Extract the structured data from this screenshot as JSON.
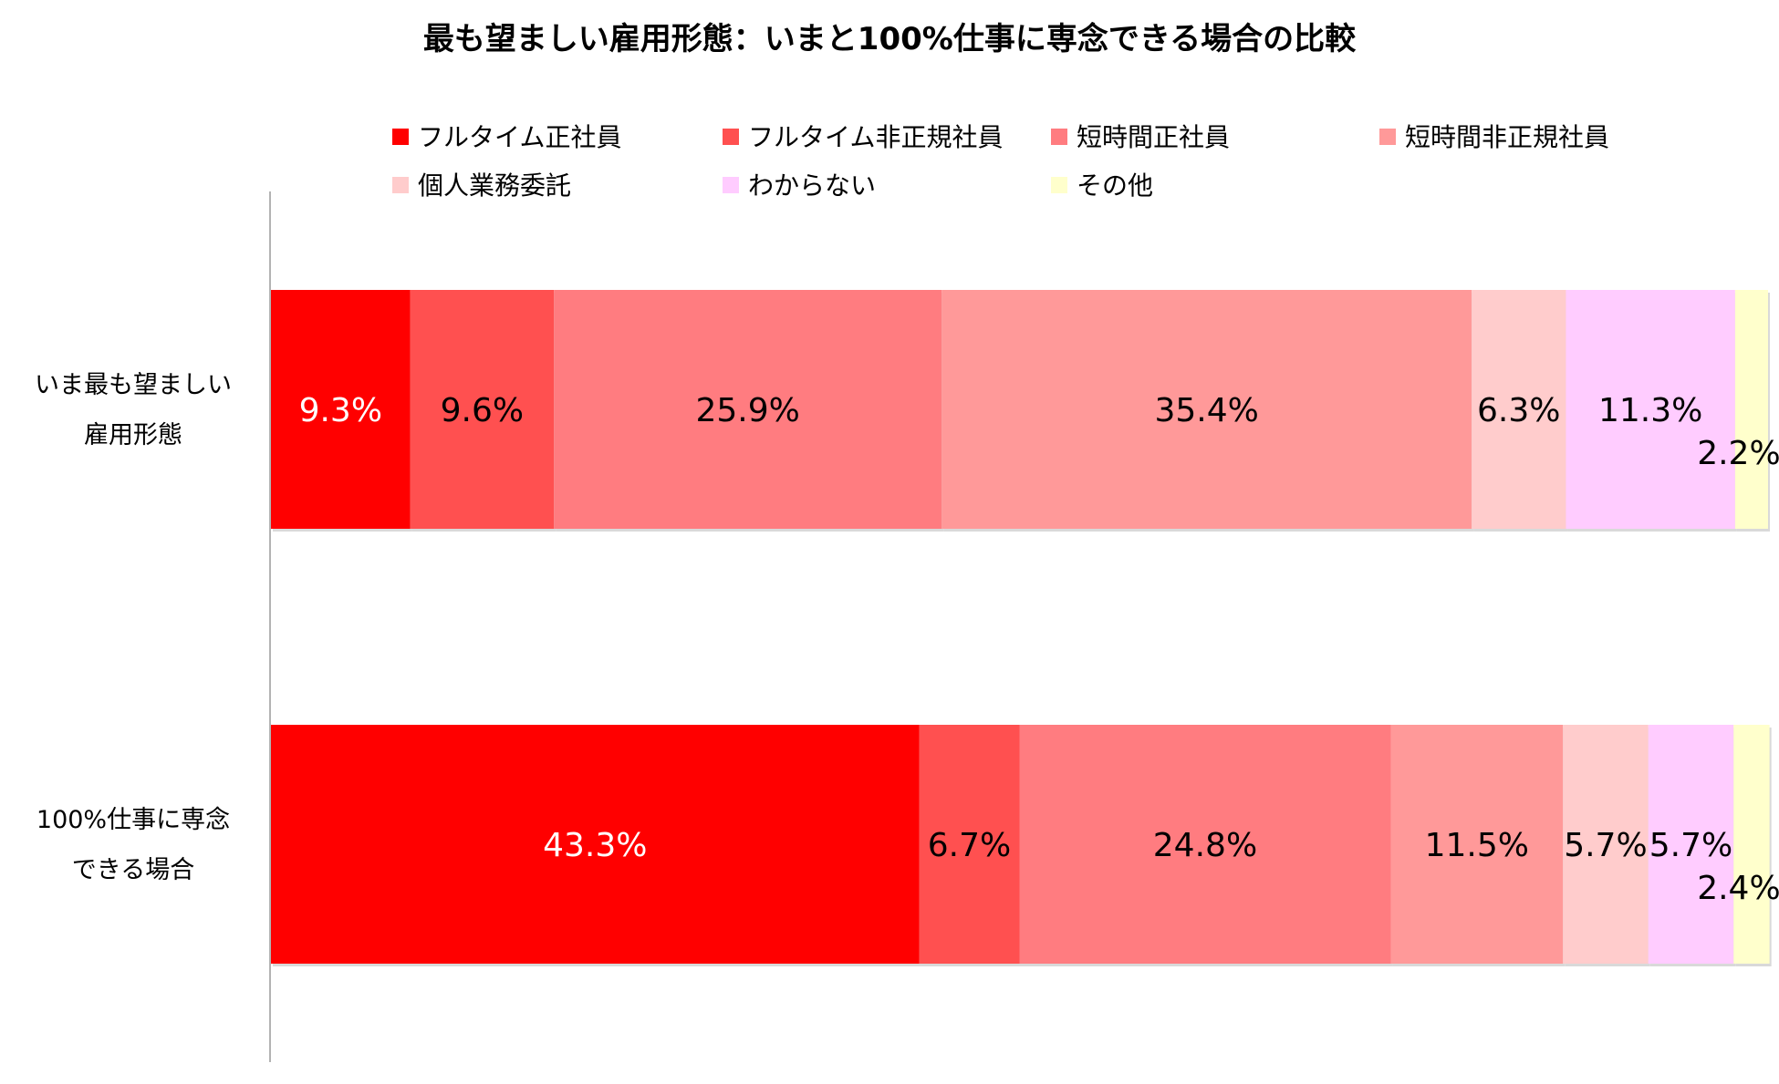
{
  "chart_data": {
    "type": "bar",
    "orientation": "horizontal",
    "stacked": true,
    "percent": true,
    "title": "最も望ましい雇用形態：いまと100%仕事に専念できる場合の比較",
    "legend_position": "top",
    "categories": [
      {
        "lines": [
          "いま最も望ましい",
          "雇用形態"
        ]
      },
      {
        "lines": [
          "100%仕事に専念",
          "できる場合"
        ]
      }
    ],
    "series": [
      {
        "name": "フルタイム正社員",
        "color": "#FF0000",
        "label_color": "#FFFFFF",
        "values": [
          9.3,
          43.3
        ],
        "labels": [
          "9.3%",
          "43.3%"
        ]
      },
      {
        "name": "フルタイム非正規社員",
        "color": "#FF5050",
        "label_color": "#000000",
        "values": [
          9.6,
          6.7
        ],
        "labels": [
          "9.6%",
          "6.7%"
        ]
      },
      {
        "name": "短時間正社員",
        "color": "#FF7C80",
        "label_color": "#000000",
        "values": [
          25.9,
          24.8
        ],
        "labels": [
          "25.9%",
          "24.8%"
        ]
      },
      {
        "name": "短時間非正規社員",
        "color": "#FF9999",
        "label_color": "#000000",
        "values": [
          35.4,
          11.5
        ],
        "labels": [
          "35.4%",
          "11.5%"
        ]
      },
      {
        "name": "個人業務委託",
        "color": "#FFCCCC",
        "label_color": "#000000",
        "values": [
          6.3,
          5.7
        ],
        "labels": [
          "6.3%",
          "5.7%"
        ]
      },
      {
        "name": "わからない",
        "color": "#FFCCFF",
        "label_color": "#000000",
        "values": [
          11.3,
          5.7
        ],
        "labels": [
          "11.3%",
          "5.7%"
        ]
      },
      {
        "name": "その他",
        "color": "#FFFFCC",
        "label_color": "#000000",
        "values": [
          2.2,
          2.4
        ],
        "labels": [
          "2.2%",
          "2.4%"
        ]
      }
    ],
    "xlim": [
      0,
      100
    ],
    "grid": false
  }
}
